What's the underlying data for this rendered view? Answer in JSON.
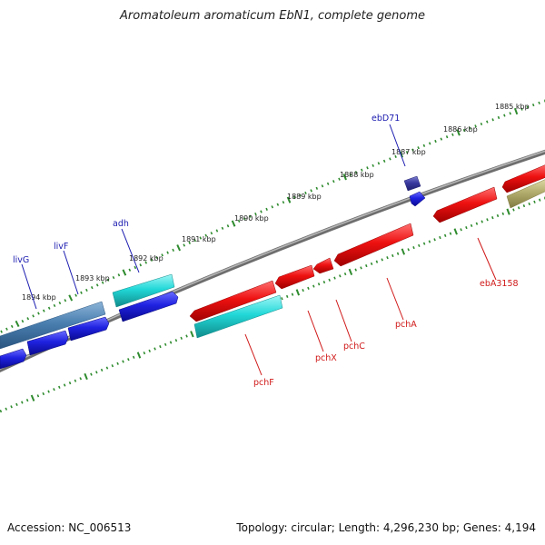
{
  "title": "Aromatoleum aromaticum EbN1, complete genome",
  "accession_label": "Accession: NC_006513",
  "summary_label": "Topology: circular; Length: 4,296,230 bp; Genes: 4,194",
  "colors": {
    "backbone": "#8a8a8a",
    "tick": "#2e8b2e",
    "label_forward": "#1a1ab0",
    "label_reverse": "#d01818",
    "gene_red": "#ee1111",
    "gene_blue": "#1f22e0",
    "gene_cyan": "#22d8d8",
    "gene_steel": "#4a7fb0",
    "gene_navy": "#3a3aa0",
    "gene_olive": "#b5b070"
  },
  "scale_labels": [
    "1885 kbp",
    "1886 kbp",
    "1887 kbp",
    "1888 kbp",
    "1889 kbp",
    "1890 kbp",
    "1891 kbp",
    "1892 kbp",
    "1893 kbp",
    "1894 kbp"
  ],
  "gene_labels": [
    {
      "text": "ebD71",
      "strand": "forward"
    },
    {
      "text": "adh",
      "strand": "forward"
    },
    {
      "text": "livF",
      "strand": "forward"
    },
    {
      "text": "livG",
      "strand": "forward"
    },
    {
      "text": "ebA3158",
      "strand": "reverse"
    },
    {
      "text": "pchA",
      "strand": "reverse"
    },
    {
      "text": "pchC",
      "strand": "reverse"
    },
    {
      "text": "pchX",
      "strand": "reverse"
    },
    {
      "text": "pchF",
      "strand": "reverse"
    }
  ]
}
